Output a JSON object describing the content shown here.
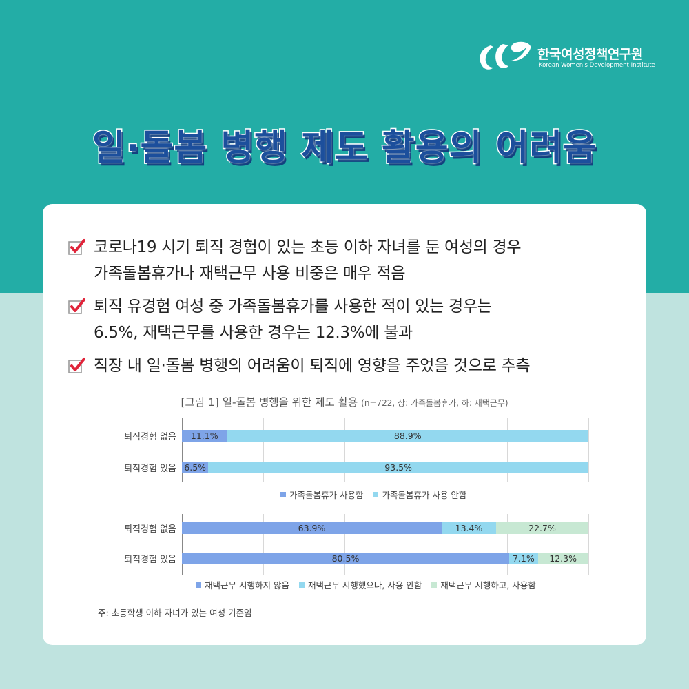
{
  "header": {
    "org_name_ko": "한국여성정책연구원",
    "org_name_en": "Korean Women's Development Institute",
    "title": "일·돌봄 병행 제도 활용의 어려움"
  },
  "bullets": [
    {
      "line1": "코로나19 시기 퇴직 경험이 있는 초등 이하 자녀를 둔 여성의 경우",
      "line2": "가족돌봄휴가나 재택근무 사용 비중은 매우 적음"
    },
    {
      "line1": "퇴직 유경험 여성 중 가족돌봄휴가를 사용한 적이 있는 경우는",
      "line2": "6.5%, 재택근무를 사용한 경우는 12.3%에 불과"
    },
    {
      "line1": "직장 내 일·돌봄 병행의 어려움이 퇴직에 영향을 주었을 것으로 추측",
      "line2": ""
    }
  ],
  "figure": {
    "title": "[그림 1] 일-돌봄 병행을 위한 제도 활용",
    "subtitle": "(n=722, 상: 가족돌봄휴가, 하: 재택근무)"
  },
  "chart_data": [
    {
      "type": "bar",
      "orientation": "horizontal",
      "stacked": "percent",
      "categories": [
        "퇴직경험 없음",
        "퇴직경험 있음"
      ],
      "series": [
        {
          "name": "가족돌봄휴가 사용함",
          "values": [
            11.1,
            6.5
          ],
          "labels": [
            "11.1%",
            "6.5%"
          ],
          "color": "#7ea4e8"
        },
        {
          "name": "가족돌봄휴가 사용 안함",
          "values": [
            88.9,
            93.5
          ],
          "labels": [
            "88.9%",
            "93.5%"
          ],
          "color": "#93d8ef"
        }
      ],
      "xlim": [
        0,
        100
      ],
      "legend_position": "bottom"
    },
    {
      "type": "bar",
      "orientation": "horizontal",
      "stacked": "percent",
      "categories": [
        "퇴직경험 없음",
        "퇴직경험 있음"
      ],
      "series": [
        {
          "name": "재택근무 시행하지 않음",
          "values": [
            63.9,
            80.5
          ],
          "labels": [
            "63.9%",
            "80.5%"
          ],
          "color": "#7ea4e8"
        },
        {
          "name": "재택근무 시행했으나, 사용 안함",
          "values": [
            13.4,
            7.1
          ],
          "labels": [
            "13.4%",
            "7.1%"
          ],
          "color": "#93d8ef"
        },
        {
          "name": "재택근무 시행하고, 사용함",
          "values": [
            22.7,
            12.3
          ],
          "labels": [
            "22.7%",
            "12.3%"
          ],
          "color": "#c7e8d3"
        }
      ],
      "xlim": [
        0,
        100
      ],
      "legend_position": "bottom"
    }
  ],
  "footnote": "주: 초등학생 이하 자녀가 있는 여성 기준임",
  "colors": {
    "top_band": "#23ada6",
    "bottom_band": "#bfe3df",
    "title_text": "#1c4f9c",
    "check_mark": "#e0243a"
  }
}
